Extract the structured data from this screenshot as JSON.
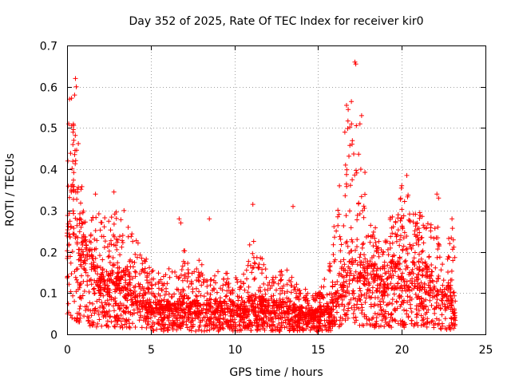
{
  "chart_data": {
    "type": "scatter",
    "title": "Day 352 of 2025, Rate Of TEC Index for receiver kir0",
    "xlabel": "GPS time / hours",
    "ylabel": "ROTI / TECUs",
    "xlim": [
      0,
      25
    ],
    "ylim": [
      0,
      0.7
    ],
    "x_ticks": [
      "0",
      "5",
      "10",
      "15",
      "20",
      "25"
    ],
    "y_ticks": [
      "0",
      "0.1",
      "0.2",
      "0.3",
      "0.4",
      "0.5",
      "0.6",
      "0.7"
    ],
    "grid": true,
    "marker": "+",
    "color": "#ff0000",
    "envelope": {
      "hours": [
        0,
        0.25,
        0.5,
        1,
        1.5,
        2,
        2.5,
        3,
        3.5,
        4,
        4.5,
        5,
        5.5,
        6,
        6.5,
        7,
        7.5,
        8,
        8.5,
        9,
        9.5,
        10,
        10.5,
        11,
        11.5,
        12,
        12.5,
        13,
        13.5,
        14,
        14.5,
        15,
        15.5,
        16,
        16.5,
        17,
        17.5,
        18,
        18.5,
        19,
        19.5,
        20,
        20.5,
        21,
        21.5,
        22,
        22.5,
        23,
        23.2
      ],
      "base_roti": [
        0.15,
        0.25,
        0.22,
        0.16,
        0.12,
        0.1,
        0.09,
        0.11,
        0.1,
        0.09,
        0.07,
        0.05,
        0.05,
        0.05,
        0.05,
        0.06,
        0.05,
        0.05,
        0.05,
        0.05,
        0.05,
        0.05,
        0.05,
        0.06,
        0.06,
        0.05,
        0.05,
        0.05,
        0.05,
        0.04,
        0.04,
        0.04,
        0.05,
        0.06,
        0.1,
        0.13,
        0.13,
        0.12,
        0.1,
        0.1,
        0.11,
        0.11,
        0.11,
        0.11,
        0.1,
        0.09,
        0.08,
        0.07,
        0.06
      ],
      "peak_roti": [
        0.42,
        0.6,
        0.55,
        0.32,
        0.28,
        0.32,
        0.28,
        0.3,
        0.28,
        0.24,
        0.22,
        0.16,
        0.15,
        0.18,
        0.16,
        0.21,
        0.16,
        0.19,
        0.15,
        0.18,
        0.15,
        0.14,
        0.14,
        0.24,
        0.2,
        0.16,
        0.15,
        0.16,
        0.16,
        0.12,
        0.1,
        0.12,
        0.14,
        0.3,
        0.42,
        0.66,
        0.5,
        0.36,
        0.24,
        0.25,
        0.32,
        0.36,
        0.33,
        0.3,
        0.3,
        0.32,
        0.2,
        0.26,
        0.24
      ]
    },
    "outliers": [
      {
        "x": 0.05,
        "y": 0.42
      },
      {
        "x": 0.1,
        "y": 0.51
      },
      {
        "x": 0.15,
        "y": 0.57
      },
      {
        "x": 0.35,
        "y": 0.46
      },
      {
        "x": 0.4,
        "y": 0.47
      },
      {
        "x": 0.45,
        "y": 0.58
      },
      {
        "x": 0.5,
        "y": 0.62
      },
      {
        "x": 0.55,
        "y": 0.6
      },
      {
        "x": 1.7,
        "y": 0.34
      },
      {
        "x": 2.8,
        "y": 0.345
      },
      {
        "x": 3.4,
        "y": 0.3
      },
      {
        "x": 6.7,
        "y": 0.28
      },
      {
        "x": 6.8,
        "y": 0.27
      },
      {
        "x": 8.5,
        "y": 0.28
      },
      {
        "x": 11.1,
        "y": 0.315
      },
      {
        "x": 13.5,
        "y": 0.31
      },
      {
        "x": 16.6,
        "y": 0.49
      },
      {
        "x": 16.7,
        "y": 0.555
      },
      {
        "x": 16.8,
        "y": 0.545
      },
      {
        "x": 17.2,
        "y": 0.66
      },
      {
        "x": 17.25,
        "y": 0.655
      },
      {
        "x": 17.5,
        "y": 0.51
      },
      {
        "x": 17.6,
        "y": 0.53
      },
      {
        "x": 20,
        "y": 0.36
      },
      {
        "x": 20.3,
        "y": 0.385
      },
      {
        "x": 22.1,
        "y": 0.34
      },
      {
        "x": 22.2,
        "y": 0.33
      },
      {
        "x": 23,
        "y": 0.28
      }
    ]
  }
}
